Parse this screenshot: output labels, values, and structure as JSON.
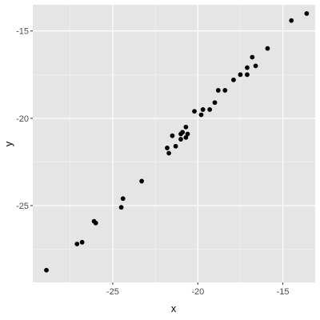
{
  "chart_data": {
    "type": "scatter",
    "title": "",
    "xlabel": "x",
    "ylabel": "y",
    "xlim": [
      -29.7,
      -13.1
    ],
    "ylim": [
      -29.4,
      -13.5
    ],
    "x_ticks": [
      -25,
      -20,
      -15
    ],
    "y_ticks": [
      -25,
      -20,
      -15
    ],
    "x_tick_labels": [
      "-25",
      "-20",
      "-15"
    ],
    "y_tick_labels": [
      "-25",
      "-20",
      "-15"
    ],
    "grid": true,
    "legend": "none",
    "colors": {
      "panel_background": "#e5e5e5",
      "grid_major": "#ffffff",
      "grid_minor": "#f2f2f2",
      "points": "#000000"
    },
    "points": [
      {
        "x": -28.9,
        "y": -28.7
      },
      {
        "x": -27.1,
        "y": -27.2
      },
      {
        "x": -26.8,
        "y": -27.1
      },
      {
        "x": -26.1,
        "y": -25.9
      },
      {
        "x": -26.0,
        "y": -26.0
      },
      {
        "x": -24.5,
        "y": -25.1
      },
      {
        "x": -24.4,
        "y": -24.6
      },
      {
        "x": -23.3,
        "y": -23.6
      },
      {
        "x": -21.8,
        "y": -21.7
      },
      {
        "x": -21.7,
        "y": -22.0
      },
      {
        "x": -21.5,
        "y": -21.0
      },
      {
        "x": -21.3,
        "y": -21.6
      },
      {
        "x": -21.0,
        "y": -21.2
      },
      {
        "x": -21.0,
        "y": -20.9
      },
      {
        "x": -20.9,
        "y": -20.8
      },
      {
        "x": -20.7,
        "y": -21.1
      },
      {
        "x": -20.7,
        "y": -20.5
      },
      {
        "x": -20.6,
        "y": -20.9
      },
      {
        "x": -20.2,
        "y": -19.6
      },
      {
        "x": -19.8,
        "y": -19.8
      },
      {
        "x": -19.7,
        "y": -19.5
      },
      {
        "x": -19.3,
        "y": -19.5
      },
      {
        "x": -19.0,
        "y": -19.1
      },
      {
        "x": -18.8,
        "y": -18.4
      },
      {
        "x": -18.4,
        "y": -18.4
      },
      {
        "x": -17.9,
        "y": -17.8
      },
      {
        "x": -17.5,
        "y": -17.5
      },
      {
        "x": -17.1,
        "y": -17.1
      },
      {
        "x": -17.1,
        "y": -17.5
      },
      {
        "x": -16.8,
        "y": -16.5
      },
      {
        "x": -16.6,
        "y": -17.0
      },
      {
        "x": -15.9,
        "y": -16.0
      },
      {
        "x": -14.5,
        "y": -14.4
      },
      {
        "x": -13.6,
        "y": -14.0
      }
    ]
  }
}
